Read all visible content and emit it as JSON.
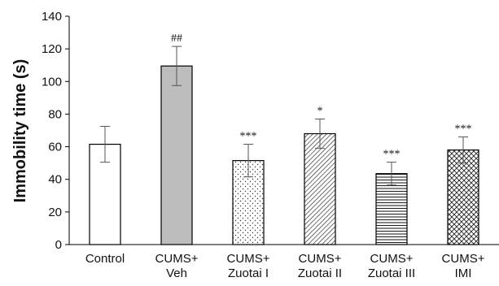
{
  "chart_data": {
    "type": "bar",
    "title": "",
    "xlabel": "",
    "ylabel": "Immobility time (s)",
    "ylim": [
      0,
      140
    ],
    "yticks": [
      0,
      20,
      40,
      60,
      80,
      100,
      120,
      140
    ],
    "grid": false,
    "categories": [
      [
        "Control"
      ],
      [
        "CUMS+",
        "Veh"
      ],
      [
        "CUMS+",
        "Zuotai I"
      ],
      [
        "CUMS+",
        "Zuotai II"
      ],
      [
        "CUMS+",
        "Zuotai III"
      ],
      [
        "CUMS+",
        "IMI"
      ]
    ],
    "values": [
      61.5,
      109.5,
      51.5,
      68,
      43.5,
      58
    ],
    "errors": [
      11,
      12,
      10,
      9,
      7,
      8
    ],
    "significance": [
      "",
      "##",
      "***",
      "*",
      "***",
      "***"
    ],
    "fills": [
      "white",
      "gray",
      "dots",
      "diagonal-down",
      "horizontal-lines",
      "crosshatch"
    ]
  }
}
